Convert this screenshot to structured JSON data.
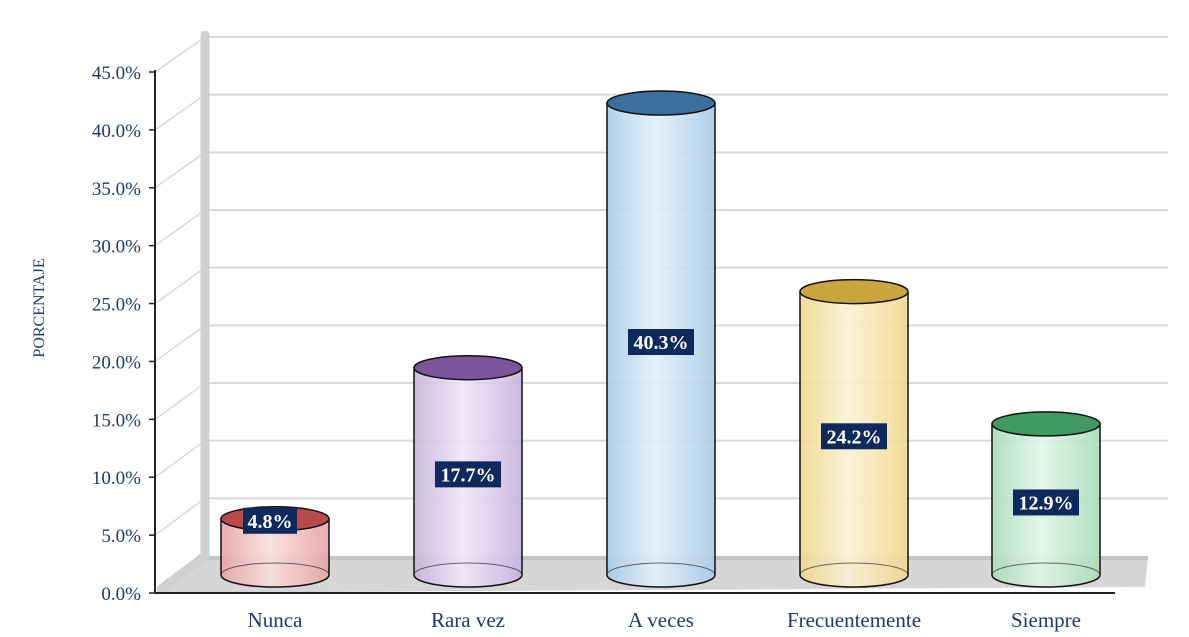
{
  "chart_data": {
    "type": "bar",
    "ylabel": "PORCENTAJE",
    "ylim": [
      0,
      45
    ],
    "grid": true,
    "yticks": [
      "0.0%",
      "5.0%",
      "10.0%",
      "15.0%",
      "20.0%",
      "25.0%",
      "30.0%",
      "35.0%",
      "40.0%",
      "45.0%"
    ],
    "categories": [
      "Nunca",
      "Rara vez",
      "A veces",
      "Frecuentemente",
      "Siempre"
    ],
    "values": [
      4.8,
      17.7,
      40.3,
      24.2,
      12.9
    ],
    "data_labels": [
      "4.8%",
      "17.7%",
      "40.3%",
      "24.2%",
      "12.9%"
    ],
    "colors": {
      "Nunca": {
        "top": "#b94a4a",
        "body": "#e8a3a3",
        "light": "#f9dede"
      },
      "Rara vez": {
        "top": "#7a559c",
        "body": "#c7b2dd",
        "light": "#efe7f8"
      },
      "A veces": {
        "top": "#3a6f9e",
        "body": "#a7cbe8",
        "light": "#e4f0fa"
      },
      "Frecuentemente": {
        "top": "#c9a53c",
        "body": "#f0d78d",
        "light": "#fbf1d2"
      },
      "Siempre": {
        "top": "#3f9a64",
        "body": "#a8dcb9",
        "light": "#e2f5e8"
      }
    },
    "label_bg": "#0e2a5c",
    "gridline_color": "#d9d9d9",
    "text_color": "#1f3a6e"
  }
}
